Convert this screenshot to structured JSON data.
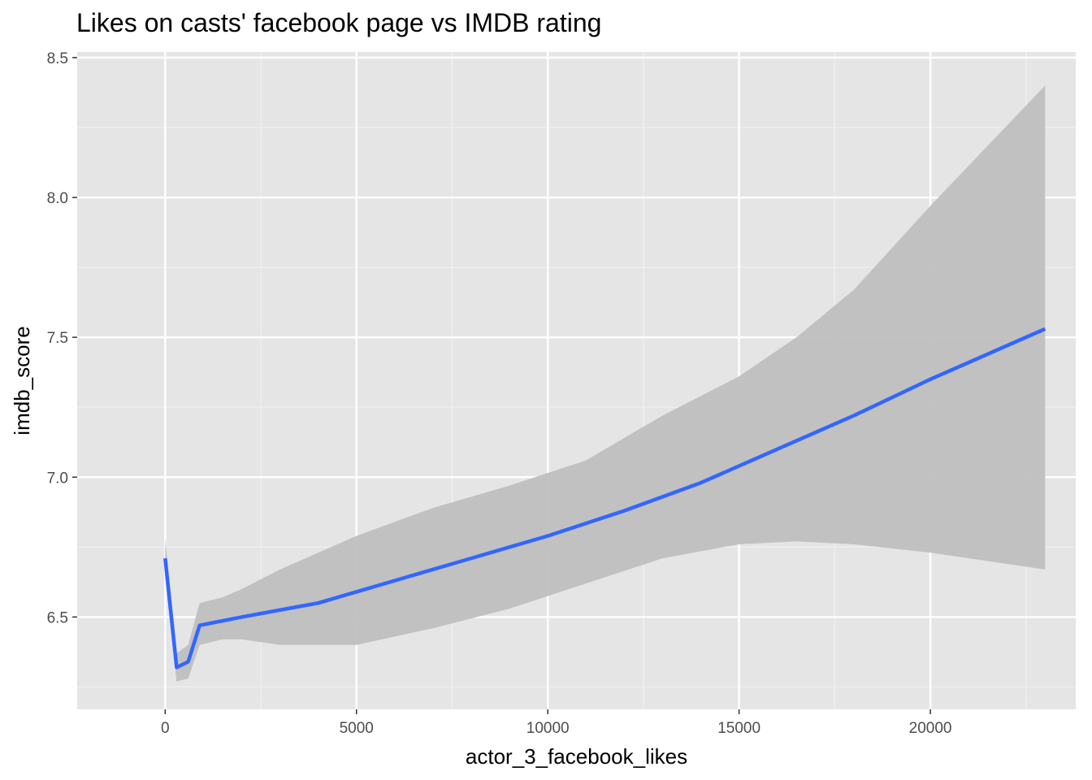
{
  "chart_data": {
    "type": "line",
    "title": "Likes on casts' facebook page vs IMDB rating",
    "xlabel": "actor_3_facebook_likes",
    "ylabel": "imdb_score",
    "xlim": [
      -2300,
      23800
    ],
    "ylim": [
      6.17,
      8.52
    ],
    "x_ticks": [
      0,
      5000,
      10000,
      15000,
      20000
    ],
    "x_tick_labels": [
      "0",
      "5000",
      "10000",
      "15000",
      "20000"
    ],
    "y_ticks": [
      6.5,
      7.0,
      7.5,
      8.0,
      8.5
    ],
    "y_tick_labels": [
      "6.5",
      "7.0",
      "7.5",
      "8.0",
      "8.5"
    ],
    "grid": true,
    "series": [
      {
        "color": "#3366ff",
        "x": [
          0,
          300,
          600,
          900,
          2000,
          4000,
          6000,
          8000,
          10000,
          12000,
          14000,
          16000,
          18000,
          20000,
          23000
        ],
        "y": [
          6.71,
          6.32,
          6.34,
          6.47,
          6.5,
          6.55,
          6.63,
          6.71,
          6.79,
          6.88,
          6.98,
          7.1,
          7.22,
          7.35,
          7.53
        ]
      }
    ],
    "confidence_band": {
      "color": "#bfbfbf",
      "x": [
        0,
        300,
        600,
        900,
        1500,
        2000,
        3000,
        5000,
        7000,
        9000,
        11000,
        13000,
        15000,
        16500,
        18000,
        20000,
        23000
      ],
      "upper": [
        6.78,
        6.37,
        6.4,
        6.55,
        6.57,
        6.6,
        6.67,
        6.79,
        6.89,
        6.97,
        7.06,
        7.22,
        7.36,
        7.5,
        7.67,
        7.97,
        8.4
      ],
      "lower": [
        6.64,
        6.27,
        6.28,
        6.4,
        6.42,
        6.42,
        6.4,
        6.4,
        6.46,
        6.53,
        6.62,
        6.71,
        6.76,
        6.77,
        6.76,
        6.73,
        6.67
      ]
    }
  }
}
